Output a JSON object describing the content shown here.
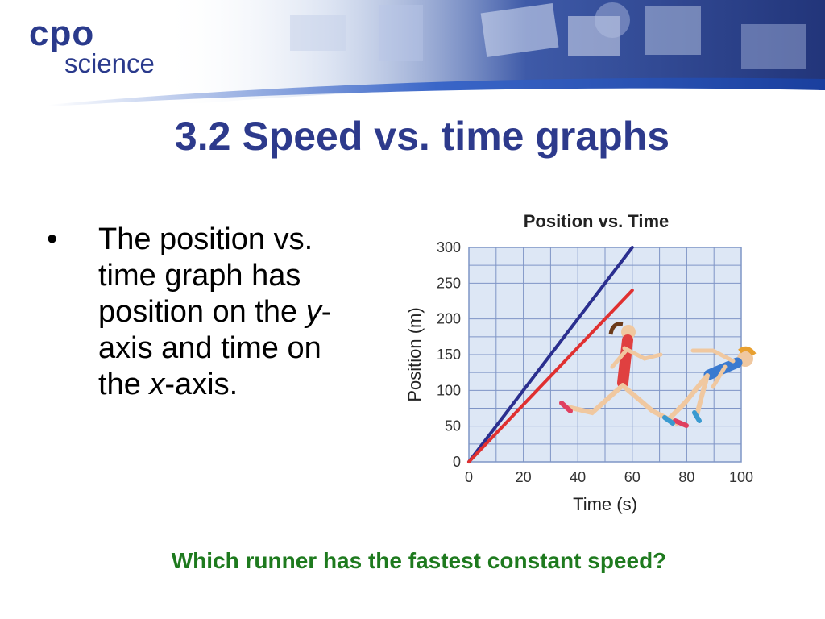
{
  "logo": {
    "line1": "cpo",
    "line2": "science"
  },
  "slide": {
    "title": "3.2 Speed vs. time graphs",
    "bullet_symbol": "•",
    "bullet": {
      "part1": "The position vs. time graph has position on the ",
      "y_word": "y",
      "part2": "-axis and time on the ",
      "x_word": "x",
      "part3": "-axis."
    },
    "question": "Which runner has the fastest constant speed?"
  },
  "colors": {
    "title": "#2d3a8c",
    "question": "#1e7a1e",
    "grid_background": "#dde7f5",
    "grid_lines": "#7f95c6",
    "series_blue": "#2b2f8f",
    "series_red": "#e03030"
  },
  "chart_data": {
    "type": "line",
    "title": "Position vs. Time",
    "xlabel": "Time (s)",
    "ylabel": "Position (m)",
    "xlim": [
      0,
      100
    ],
    "ylim": [
      0,
      300
    ],
    "x_ticks": [
      0,
      20,
      40,
      60,
      80,
      100
    ],
    "y_ticks": [
      0,
      50,
      100,
      150,
      200,
      250,
      300
    ],
    "grid": true,
    "series": [
      {
        "color": "#2b2f8f",
        "x": [
          0,
          60
        ],
        "y": [
          0,
          300
        ]
      },
      {
        "color": "#e03030",
        "x": [
          0,
          60
        ],
        "y": [
          0,
          240
        ]
      }
    ]
  }
}
